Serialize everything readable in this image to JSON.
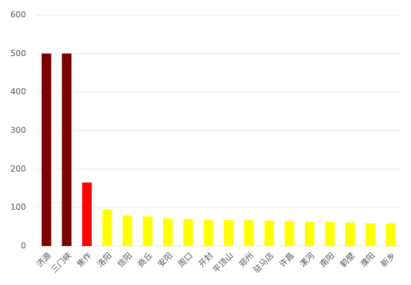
{
  "chart_data": {
    "type": "bar",
    "categories": [
      "济源",
      "三门峡",
      "焦作",
      "洛阳",
      "信阳",
      "商丘",
      "安阳",
      "周口",
      "开封",
      "平顶山",
      "郑州",
      "驻马店",
      "许昌",
      "漯河",
      "南阳",
      "鹤壁",
      "濮阳",
      "新乡"
    ],
    "values": [
      500,
      500,
      165,
      95,
      80,
      77,
      72,
      70,
      68,
      68,
      67,
      66,
      65,
      63,
      63,
      61,
      59,
      59
    ],
    "colors": [
      "#7b0000",
      "#7b0000",
      "#ff0000",
      "#ffff00",
      "#ffff00",
      "#ffff00",
      "#ffff00",
      "#ffff00",
      "#ffff00",
      "#ffff00",
      "#ffff00",
      "#ffff00",
      "#ffff00",
      "#ffff00",
      "#ffff00",
      "#ffff00",
      "#ffff00",
      "#ffff00"
    ],
    "ylim": [
      0,
      600
    ],
    "yticks": [
      0,
      100,
      200,
      300,
      400,
      500,
      600
    ],
    "grid": true
  }
}
